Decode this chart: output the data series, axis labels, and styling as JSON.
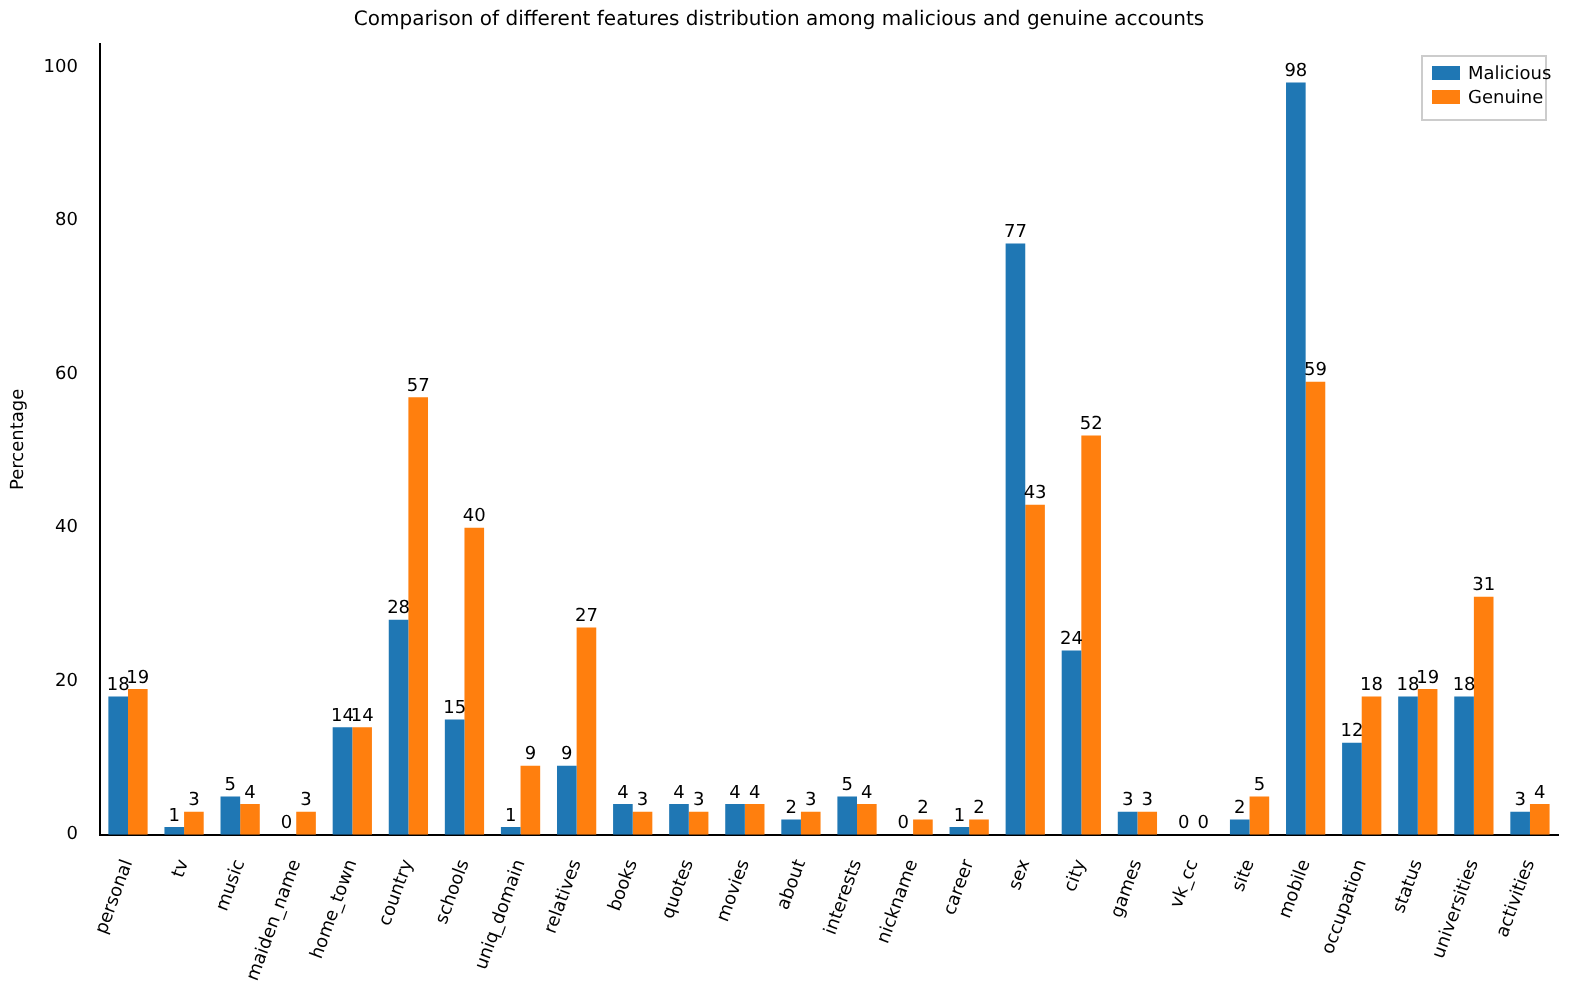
{
  "chart_data": {
    "type": "bar",
    "title": "Comparison of different features distribution among malicious and genuine accounts",
    "ylabel": "Percentage",
    "categories": [
      "personal",
      "tv",
      "music",
      "maiden_name",
      "home_town",
      "country",
      "schools",
      "uniq_domain",
      "relatives",
      "books",
      "quotes",
      "movies",
      "about",
      "interests",
      "nickname",
      "career",
      "sex",
      "city",
      "games",
      "vk_cc",
      "site",
      "mobile",
      "occupation",
      "status",
      "universities",
      "activities"
    ],
    "series": [
      {
        "name": "Malicious",
        "color": "#1f77b4",
        "values": [
          18,
          1,
          5,
          0,
          14,
          28,
          15,
          1,
          9,
          4,
          4,
          4,
          2,
          5,
          0,
          1,
          77,
          24,
          3,
          0,
          2,
          98,
          12,
          18,
          18,
          3
        ]
      },
      {
        "name": "Genuine",
        "color": "#ff7f0e",
        "values": [
          19,
          3,
          4,
          3,
          14,
          57,
          40,
          9,
          27,
          3,
          3,
          4,
          3,
          4,
          2,
          2,
          43,
          52,
          3,
          0,
          5,
          59,
          18,
          19,
          31,
          4
        ]
      }
    ],
    "ylim": [
      0,
      103
    ],
    "yticks": [
      0,
      20,
      40,
      60,
      80,
      100
    ],
    "grid": false,
    "legend": "top right",
    "data_labels": true
  }
}
